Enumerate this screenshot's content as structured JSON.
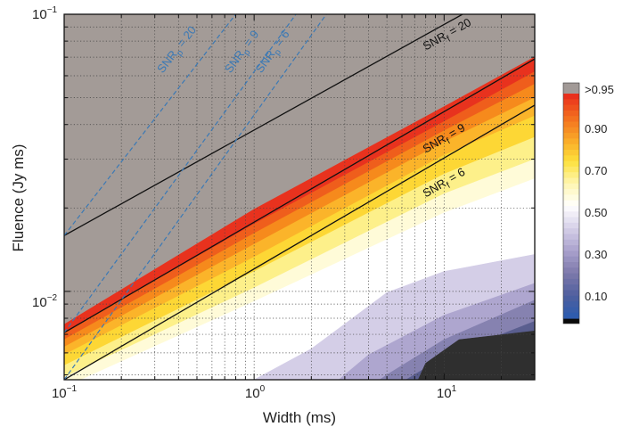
{
  "chart_data": {
    "type": "heatmap",
    "title": "",
    "xlabel": "Width (ms)",
    "ylabel": "Fluence (Jy ms)",
    "x_scale": "log",
    "y_scale": "log",
    "xlim": [
      0.1,
      30
    ],
    "ylim": [
      0.0048,
      0.1
    ],
    "grid": true,
    "x_ticks": [
      {
        "base": "10",
        "exp": "−1"
      },
      {
        "base": "10",
        "exp": "0"
      },
      {
        "base": "10",
        "exp": "1"
      }
    ],
    "y_ticks": [
      {
        "base": "10",
        "exp": "−2"
      },
      {
        "base": "10",
        "exp": "−1"
      }
    ],
    "colorbar": {
      "ticks": [
        ">0.95",
        "0.90",
        "0.70",
        "0.50",
        "0.30",
        "0.10"
      ],
      "low_color": "#0a0a0a",
      "high_color": "#a29a97"
    },
    "colors": {
      "saturated_region": "#a39b97",
      "completeness_levels": [
        {
          "level": 0.9,
          "color": "#e8321e"
        },
        {
          "level": 0.85,
          "color": "#ef5e1c"
        },
        {
          "level": 0.8,
          "color": "#f68a1c"
        },
        {
          "level": 0.75,
          "color": "#fbb42a"
        },
        {
          "level": 0.7,
          "color": "#fdd735"
        },
        {
          "level": 0.6,
          "color": "#fdf08a"
        },
        {
          "level": 0.55,
          "color": "#fffbd8"
        },
        {
          "level": 0.5,
          "color": "#ffffff"
        },
        {
          "level": 0.4,
          "color": "#d4cee7"
        },
        {
          "level": 0.3,
          "color": "#aea6cf"
        },
        {
          "level": 0.2,
          "color": "#8682b0"
        },
        {
          "level": 0.1,
          "color": "#5a5e8f"
        },
        {
          "level": 0.05,
          "color": "#2f2f2f"
        }
      ]
    },
    "boundaries": [
      {
        "name": "saturation (>0.95) edge",
        "points": [
          [
            0.1,
            0.0076
          ],
          [
            1,
            0.0198
          ],
          [
            10,
            0.0464
          ],
          [
            30,
            0.0702
          ]
        ]
      },
      {
        "name": "0.90 edge",
        "points": [
          [
            0.1,
            0.0071
          ],
          [
            1,
            0.0175
          ],
          [
            10,
            0.041
          ],
          [
            30,
            0.062
          ]
        ]
      },
      {
        "name": "0.85 edge",
        "points": [
          [
            0.1,
            0.0067
          ],
          [
            1,
            0.0162
          ],
          [
            10,
            0.038
          ],
          [
            30,
            0.056
          ]
        ]
      },
      {
        "name": "0.80 edge",
        "points": [
          [
            0.1,
            0.0063
          ],
          [
            1,
            0.0148
          ],
          [
            10,
            0.0346
          ],
          [
            30,
            0.05
          ]
        ]
      },
      {
        "name": "0.75 edge",
        "points": [
          [
            0.1,
            0.0059
          ],
          [
            1,
            0.0133
          ],
          [
            10,
            0.031
          ],
          [
            30,
            0.043
          ]
        ]
      },
      {
        "name": "0.70 edge",
        "points": [
          [
            0.1,
            0.0054
          ],
          [
            1,
            0.0118
          ],
          [
            10,
            0.0265
          ],
          [
            30,
            0.036
          ]
        ]
      },
      {
        "name": "0.60 edge",
        "points": [
          [
            0.1,
            0.0049
          ],
          [
            1,
            0.0103
          ],
          [
            10,
            0.0225
          ],
          [
            30,
            0.03
          ]
        ]
      },
      {
        "name": "0.50 edge",
        "points": [
          [
            0.1,
            0.0045
          ],
          [
            1,
            0.0092
          ],
          [
            10,
            0.0192
          ],
          [
            30,
            0.0255
          ]
        ]
      },
      {
        "name": "0.40 edge",
        "points": [
          [
            0.1,
            0.0045
          ],
          [
            1,
            0.0048
          ],
          [
            2,
            0.0062
          ],
          [
            5,
            0.0099
          ],
          [
            10,
            0.0118
          ],
          [
            30,
            0.0136
          ]
        ]
      },
      {
        "name": "0.30 edge",
        "points": [
          [
            0.1,
            0.0045
          ],
          [
            2.5,
            0.0045
          ],
          [
            4,
            0.0059
          ],
          [
            10,
            0.0082
          ],
          [
            30,
            0.0107
          ]
        ]
      },
      {
        "name": "0.20 edge",
        "points": [
          [
            0.1,
            0.0045
          ],
          [
            4,
            0.0045
          ],
          [
            5,
            0.005
          ],
          [
            10,
            0.0067
          ],
          [
            30,
            0.0093
          ]
        ]
      },
      {
        "name": "0.10 edge",
        "points": [
          [
            0.1,
            0.0045
          ],
          [
            5,
            0.0045
          ],
          [
            6,
            0.0047
          ],
          [
            10,
            0.0058
          ],
          [
            30,
            0.0078
          ]
        ]
      },
      {
        "name": "0.05 edge",
        "points": [
          [
            0.1,
            0.0045
          ],
          [
            7,
            0.0045
          ],
          [
            8,
            0.0055
          ],
          [
            12,
            0.0067
          ],
          [
            30,
            0.0072
          ]
        ]
      }
    ],
    "snr_lines": [
      {
        "kind": "fluence",
        "label_main": "SNR",
        "label_sub": "f",
        "label_value": " = 20",
        "points": [
          [
            0.1,
            0.0159
          ],
          [
            12.5,
            0.1
          ]
        ],
        "style": "solid",
        "color": "#111111",
        "label_x": 8,
        "label_y": 0.074
      },
      {
        "kind": "fluence",
        "label_main": "SNR",
        "label_sub": "f",
        "label_value": " = 9",
        "points": [
          [
            0.1,
            0.0071
          ],
          [
            30,
            0.069
          ]
        ],
        "style": "solid",
        "color": "#111111",
        "label_x": 8,
        "label_y": 0.0315
      },
      {
        "kind": "fluence",
        "label_main": "SNR",
        "label_sub": "f",
        "label_value": " = 6",
        "points": [
          [
            0.1,
            0.0048
          ],
          [
            30,
            0.047
          ]
        ],
        "style": "solid",
        "color": "#111111",
        "label_x": 8,
        "label_y": 0.0218
      },
      {
        "kind": "peak",
        "label_main": "SNR",
        "label_sub": "p",
        "label_value": " = 20",
        "points": [
          [
            0.1,
            0.0159
          ],
          [
            0.8,
            0.1
          ]
        ],
        "style": "dashed",
        "color": "#3b79b5",
        "label_x": 0.33,
        "label_y": 0.061
      },
      {
        "kind": "peak",
        "label_main": "SNR",
        "label_sub": "p",
        "label_value": " = 9",
        "points": [
          [
            0.1,
            0.0071
          ],
          [
            1.66,
            0.1
          ]
        ],
        "style": "dashed",
        "color": "#3b79b5",
        "label_x": 0.75,
        "label_y": 0.061
      },
      {
        "kind": "peak",
        "label_main": "SNR",
        "label_sub": "p",
        "label_value": " = 6",
        "points": [
          [
            0.1,
            0.0048
          ],
          [
            2.4,
            0.1
          ]
        ],
        "style": "dashed",
        "color": "#3b79b5",
        "label_x": 1.09,
        "label_y": 0.061
      }
    ]
  }
}
